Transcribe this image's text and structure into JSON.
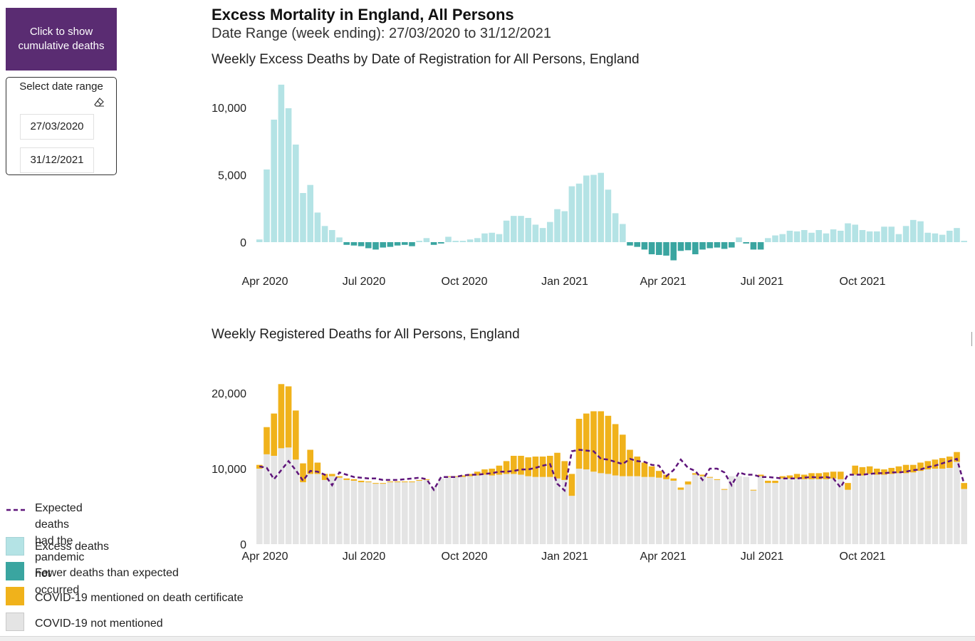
{
  "controls": {
    "cumulative_button_label": "Click to show\ncumulative deaths",
    "date_range_label": "Select date range",
    "start_date": "27/03/2020",
    "end_date": "31/12/2021"
  },
  "header": {
    "title": "Excess Mortality in England, All Persons",
    "date_range": "Date Range (week ending): 27/03/2020 to 31/12/2021"
  },
  "legend": {
    "expected": "Expected deaths had the\npandemic not occurred",
    "excess": "Excess deaths",
    "fewer": "Fewer deaths than expected",
    "covid": "COVID-19 mentioned on death certificate",
    "not_covid": "COVID-19 not mentioned"
  },
  "colors": {
    "excess": "#b4e3e5",
    "fewer": "#3aa5a0",
    "covid": "#f0b21b",
    "not_covid": "#e4e4e4",
    "expected_line": "#5f157b",
    "button": "#5a2c72"
  },
  "chart_data": [
    {
      "type": "bar",
      "title": "Weekly Excess Deaths by Date of Registration for All Persons, England",
      "x_tick_labels": [
        "Apr 2020",
        "Jul 2020",
        "Oct 2020",
        "Jan 2021",
        "Apr 2021",
        "Jul 2021",
        "Oct 2021"
      ],
      "y_tick_labels": [
        "10,000",
        "5,000",
        "0"
      ],
      "y_ticks": [
        10000,
        5000,
        0
      ],
      "ylim": [
        -1500,
        12000
      ],
      "first_week_ending": "27/03/2020",
      "values": [
        200,
        5400,
        9100,
        11700,
        9950,
        7250,
        3650,
        4250,
        2200,
        1200,
        900,
        350,
        -200,
        -250,
        -300,
        -450,
        -550,
        -400,
        -350,
        -250,
        -200,
        -300,
        100,
        300,
        -200,
        -100,
        400,
        100,
        100,
        200,
        300,
        650,
        700,
        600,
        1600,
        1950,
        1950,
        1800,
        1300,
        1050,
        1500,
        2450,
        2300,
        4150,
        4350,
        4950,
        5000,
        5150,
        3900,
        2150,
        1350,
        -250,
        -350,
        -550,
        -900,
        -950,
        -1000,
        -1350,
        -650,
        -600,
        -900,
        -550,
        -450,
        -400,
        -500,
        -400,
        350,
        -100,
        -550,
        -550,
        300,
        500,
        600,
        850,
        800,
        900,
        700,
        900,
        650,
        950,
        850,
        1400,
        1300,
        900,
        800,
        800,
        1150,
        1150,
        600,
        1200,
        1650,
        1550,
        700,
        650,
        550,
        850,
        1050,
        100
      ]
    },
    {
      "type": "bar",
      "stacked": true,
      "title": "Weekly Registered Deaths for All Persons, England",
      "x_tick_labels": [
        "Apr 2020",
        "Jul 2020",
        "Oct 2020",
        "Jan 2021",
        "Apr 2021",
        "Jul 2021",
        "Oct 2021"
      ],
      "y_tick_labels": [
        "20,000",
        "10,000",
        "0"
      ],
      "y_ticks": [
        20000,
        10000,
        0
      ],
      "ylim": [
        0,
        22000
      ],
      "first_week_ending": "27/03/2020",
      "series": [
        {
          "name": "COVID-19 not mentioned",
          "values": [
            10000,
            11900,
            11700,
            12700,
            12800,
            11200,
            8200,
            9300,
            9300,
            8500,
            9000,
            8800,
            8500,
            8400,
            8200,
            8200,
            8000,
            8000,
            8200,
            8200,
            8200,
            8200,
            8400,
            8500,
            7600,
            8700,
            8900,
            8900,
            8900,
            9000,
            9100,
            9200,
            9100,
            9200,
            9300,
            9300,
            9200,
            9000,
            8900,
            8900,
            8900,
            8700,
            8500,
            6400,
            10000,
            9900,
            9600,
            9400,
            9300,
            9100,
            9000,
            9000,
            9000,
            8900,
            8900,
            8800,
            8600,
            8400,
            7200,
            7900,
            9200,
            9000,
            8800,
            8500,
            7200,
            9000,
            9000,
            8900,
            7100,
            9000,
            8100,
            8100,
            8700,
            8700,
            8700,
            8600,
            8600,
            8600,
            8600,
            8700,
            8600,
            7200,
            9200,
            9100,
            9300,
            9200,
            9200,
            9300,
            9400,
            9400,
            9500,
            9700,
            9900,
            10000,
            10000,
            10100,
            10900,
            7300
          ]
        },
        {
          "name": "COVID-19 mentioned on death certificate",
          "values": [
            500,
            3600,
            5600,
            8500,
            8100,
            6500,
            2500,
            3200,
            1500,
            800,
            300,
            200,
            200,
            200,
            200,
            100,
            100,
            100,
            100,
            100,
            100,
            100,
            100,
            100,
            0,
            0,
            100,
            100,
            200,
            300,
            500,
            700,
            900,
            1200,
            1700,
            2400,
            2500,
            2500,
            2700,
            2700,
            2800,
            3400,
            2500,
            2900,
            6600,
            7400,
            8000,
            8200,
            7700,
            6800,
            5500,
            3500,
            2600,
            1900,
            1400,
            900,
            600,
            300,
            300,
            400,
            200,
            200,
            100,
            100,
            100,
            0,
            0,
            0,
            100,
            200,
            300,
            300,
            300,
            400,
            600,
            600,
            800,
            800,
            900,
            900,
            1000,
            900,
            1200,
            1100,
            1000,
            800,
            700,
            800,
            900,
            1100,
            1000,
            1100,
            1100,
            1200,
            1400,
            1500,
            1300,
            800
          ]
        },
        {
          "name": "Expected deaths had the pandemic not occurred",
          "type": "line",
          "values": [
            10300,
            10100,
            8600,
            9800,
            11000,
            9800,
            8400,
            9700,
            9600,
            9200,
            7800,
            9500,
            9200,
            8900,
            8800,
            8700,
            8700,
            8500,
            8500,
            8500,
            8600,
            8700,
            8800,
            8600,
            7200,
            8900,
            8900,
            8900,
            9100,
            9200,
            9200,
            9300,
            9400,
            9600,
            9600,
            9700,
            9900,
            9900,
            10100,
            10400,
            10600,
            8000,
            7100,
            12300,
            12500,
            12400,
            12300,
            11300,
            11200,
            10900,
            10600,
            11300,
            11000,
            10900,
            10500,
            10400,
            9000,
            9800,
            11200,
            10100,
            9700,
            8500,
            10000,
            10000,
            9500,
            7800,
            9500,
            9200,
            9200,
            8900,
            8900,
            8800,
            8700,
            8700,
            8700,
            8800,
            8900,
            8800,
            8900,
            8700,
            7500,
            9200,
            9200,
            9200,
            9300,
            9400,
            9400,
            9500,
            9500,
            9600,
            9800,
            9900,
            10200,
            10400,
            10700,
            11000,
            11300,
            8000
          ]
        }
      ]
    }
  ]
}
